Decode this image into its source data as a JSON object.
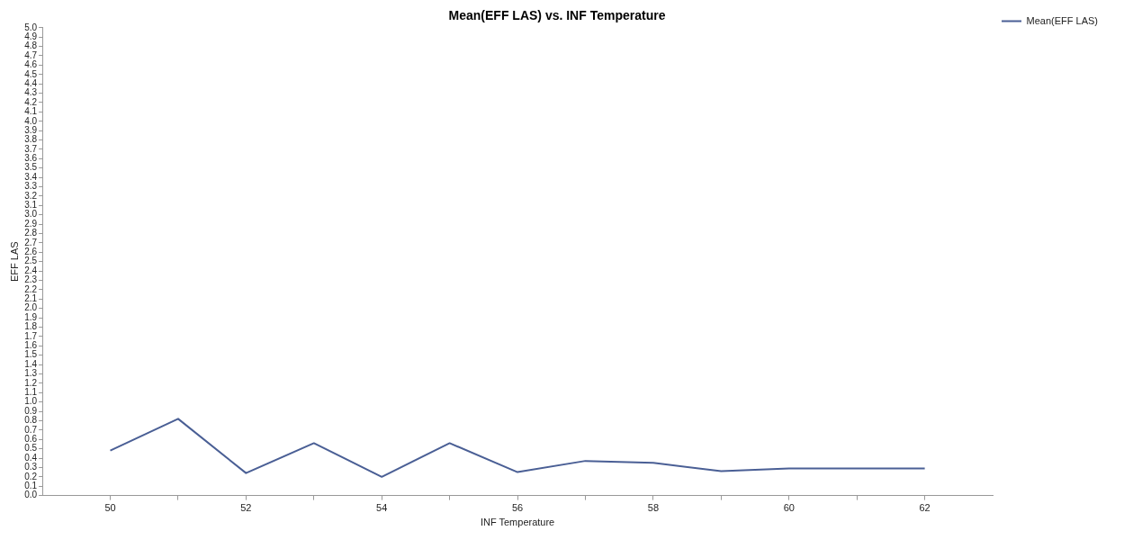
{
  "chart_data": {
    "type": "line",
    "title": "Mean(EFF LAS) vs. INF Temperature",
    "xlabel": "INF Temperature",
    "ylabel": "EFF LAS",
    "x": [
      50,
      51,
      52,
      53,
      54,
      55,
      56,
      57,
      58,
      59,
      60,
      61,
      62
    ],
    "series": [
      {
        "name": "Mean(EFF LAS)",
        "color": "#4a5f95",
        "values": [
          0.48,
          0.82,
          0.24,
          0.56,
          0.2,
          0.56,
          0.25,
          0.37,
          0.35,
          0.26,
          0.29,
          0.29,
          0.29
        ]
      }
    ],
    "xlim": [
      49,
      63
    ],
    "xticks": [
      50,
      {
        "value": 51,
        "label": null
      },
      52,
      {
        "value": 53,
        "label": null
      },
      54,
      {
        "value": 55,
        "label": null
      },
      56,
      {
        "value": 57,
        "label": null
      },
      58,
      {
        "value": 59,
        "label": null
      },
      60,
      {
        "value": 61,
        "label": null
      },
      62
    ],
    "ylim": [
      0,
      5
    ],
    "yticks": [
      {
        "value": 0,
        "label": "0.0"
      },
      0.1,
      0.2,
      0.3,
      0.4,
      0.5,
      0.6,
      0.7,
      0.8,
      0.9,
      {
        "value": 1,
        "label": "1.0"
      },
      1.1,
      1.2,
      1.3,
      1.4,
      1.5,
      1.6,
      1.7,
      1.8,
      1.9,
      {
        "value": 2,
        "label": "2.0"
      },
      2.1,
      2.2,
      2.3,
      2.4,
      2.5,
      2.6,
      2.7,
      2.8,
      2.9,
      {
        "value": 3,
        "label": "3.0"
      },
      3.1,
      3.2,
      3.3,
      3.4,
      3.5,
      3.6,
      3.7,
      3.8,
      3.9,
      {
        "value": 4,
        "label": "4.0"
      },
      4.1,
      4.2,
      4.3,
      4.4,
      4.5,
      4.6,
      4.7,
      4.8,
      4.9,
      {
        "value": 5,
        "label": "5.0"
      }
    ],
    "grid": false,
    "legend": "top right",
    "marker": "none",
    "line_style": "solid"
  }
}
